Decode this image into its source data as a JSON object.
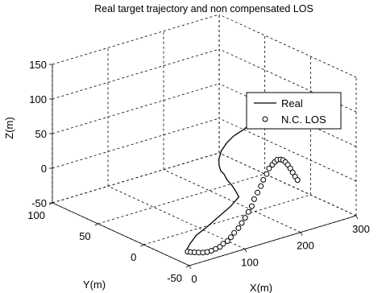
{
  "chart_data": {
    "type": "scatter",
    "title": "Real target trajectory and non compensated LOS",
    "xlabel": "X(m)",
    "ylabel": "Y(m)",
    "zlabel": "Z(m)",
    "xlim": [
      0,
      300
    ],
    "ylim": [
      -50,
      100
    ],
    "zlim": [
      -50,
      150
    ],
    "xticks": [
      "0",
      "100",
      "200",
      "300"
    ],
    "yticks": [
      "-50",
      "0",
      "50",
      "100"
    ],
    "zticks": [
      "-50",
      "0",
      "50",
      "100",
      "150"
    ],
    "grid": true,
    "legend_position": "right",
    "series": [
      {
        "name": "Real",
        "style": "line",
        "color": "#000000",
        "points": [
          [
            122,
            -41,
            118
          ],
          [
            118,
            -37,
            110
          ],
          [
            112,
            -30,
            98
          ],
          [
            108,
            -25,
            86
          ],
          [
            105,
            -21,
            73
          ],
          [
            104,
            -19,
            60
          ],
          [
            106,
            -18,
            50
          ],
          [
            112,
            -16,
            40
          ],
          [
            120,
            -15,
            32
          ],
          [
            130,
            -12,
            20
          ],
          [
            142,
            -10,
            8
          ],
          [
            152,
            -8,
            -4
          ],
          [
            158,
            -8,
            -14
          ],
          [
            140,
            -10,
            -22
          ],
          [
            115,
            -12,
            -30
          ],
          [
            90,
            -14,
            -38
          ],
          [
            70,
            -15,
            -44
          ],
          [
            55,
            -17,
            -52
          ],
          [
            50,
            -17,
            -58
          ],
          [
            53,
            -16,
            -62
          ]
        ]
      },
      {
        "name": "N.C. LOS",
        "style": "markers",
        "marker": "circle",
        "color": "#000000",
        "points": [
          [
            51,
            -17,
            -62
          ],
          [
            55,
            -18,
            -63
          ],
          [
            60,
            -19,
            -64
          ],
          [
            66,
            -20,
            -65
          ],
          [
            72,
            -21,
            -66
          ],
          [
            78,
            -22,
            -66
          ],
          [
            84,
            -23,
            -65
          ],
          [
            90,
            -24,
            -63
          ],
          [
            96,
            -25,
            -61
          ],
          [
            102,
            -25,
            -58
          ],
          [
            108,
            -26,
            -55
          ],
          [
            114,
            -26,
            -51
          ],
          [
            120,
            -26,
            -46
          ],
          [
            126,
            -27,
            -40
          ],
          [
            132,
            -27,
            -34
          ],
          [
            138,
            -27,
            -28
          ],
          [
            144,
            -27,
            -21
          ],
          [
            150,
            -27,
            -14
          ],
          [
            156,
            -26,
            -6
          ],
          [
            162,
            -26,
            2
          ],
          [
            168,
            -26,
            10
          ],
          [
            174,
            -25,
            17
          ],
          [
            180,
            -25,
            24
          ],
          [
            186,
            -24,
            30
          ],
          [
            192,
            -24,
            34
          ],
          [
            198,
            -23,
            36
          ],
          [
            204,
            -22,
            37
          ],
          [
            210,
            -22,
            36
          ],
          [
            216,
            -21,
            33
          ],
          [
            222,
            -20,
            28
          ],
          [
            228,
            -19,
            22
          ],
          [
            234,
            -18,
            15
          ],
          [
            240,
            -17,
            7
          ],
          [
            246,
            -16,
            -1
          ],
          [
            252,
            -15,
            -8
          ]
        ]
      }
    ]
  }
}
